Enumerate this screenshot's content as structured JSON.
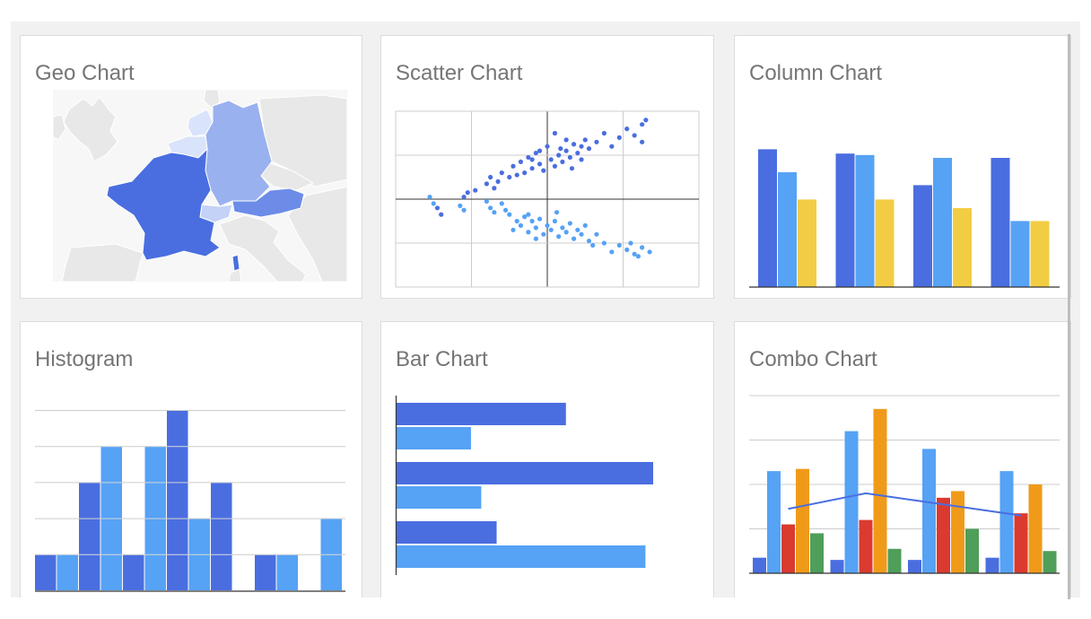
{
  "colors": {
    "blue_dark": "#4a6ee0",
    "blue_light": "#56a2f5",
    "yellow": "#f2cd44",
    "red": "#db3a2f",
    "orange": "#f09a1a",
    "green": "#4f9e59",
    "geo_land": "#e8e8e8",
    "geo_border": "#ffffff",
    "france": "#4a6ee0",
    "germany": "#9ab1ef",
    "austria": "#6c8ce8",
    "benelux": "#d9e3fa",
    "swiss": "#c3d2f6",
    "grid": "#cccccc",
    "axis": "#333333"
  },
  "cards": {
    "geo": {
      "title": "Geo Chart"
    },
    "scatter": {
      "title": "Scatter Chart"
    },
    "column": {
      "title": "Column Chart"
    },
    "histogram": {
      "title": "Histogram"
    },
    "bar": {
      "title": "Bar Chart"
    },
    "combo": {
      "title": "Combo Chart"
    }
  },
  "chart_data": [
    {
      "type": "map",
      "name": "geo",
      "regions": [
        "France",
        "Germany",
        "Austria",
        "Switzerland",
        "Belgium",
        "Netherlands"
      ],
      "region_fill": {
        "France": "france",
        "Germany": "germany",
        "Austria": "austria",
        "Switzerland": "swiss",
        "Belgium": "benelux",
        "Netherlands": "benelux"
      }
    },
    {
      "type": "scatter",
      "name": "scatter",
      "xlim": [
        -4,
        4
      ],
      "ylim": [
        -2,
        2
      ],
      "grid": true,
      "series": [
        {
          "points": [
            [
              -2.9,
              -0.2
            ],
            [
              -2.8,
              -0.35
            ],
            [
              -2.2,
              0.05
            ],
            [
              -2.1,
              0.15
            ],
            [
              -1.9,
              0.2
            ],
            [
              -1.6,
              0.35
            ],
            [
              -1.5,
              0.5
            ],
            [
              -1.3,
              0.4
            ],
            [
              -1.2,
              0.6
            ],
            [
              -1,
              0.5
            ],
            [
              -0.9,
              0.75
            ],
            [
              -0.8,
              0.55
            ],
            [
              -0.7,
              0.85
            ],
            [
              -0.6,
              0.6
            ],
            [
              -0.5,
              0.95
            ],
            [
              -0.4,
              0.7
            ],
            [
              -0.3,
              1.05
            ],
            [
              -0.2,
              0.8
            ],
            [
              -0.1,
              0.65
            ],
            [
              0,
              1.2
            ],
            [
              0.1,
              0.9
            ],
            [
              0.2,
              0.75
            ],
            [
              0.3,
              1.0
            ],
            [
              0.4,
              0.85
            ],
            [
              0.5,
              1.1
            ],
            [
              0.6,
              0.95
            ],
            [
              0.7,
              1.25
            ],
            [
              0.8,
              1.05
            ],
            [
              0.9,
              0.9
            ],
            [
              1.0,
              1.35
            ],
            [
              1.1,
              1.15
            ],
            [
              1.3,
              1.3
            ],
            [
              1.5,
              1.5
            ],
            [
              1.7,
              1.2
            ],
            [
              1.9,
              1.4
            ],
            [
              2.1,
              1.6
            ],
            [
              2.3,
              1.45
            ],
            [
              2.5,
              1.7
            ],
            [
              2.6,
              1.8
            ],
            [
              2.5,
              1.3
            ],
            [
              0.2,
              1.5
            ],
            [
              0.5,
              1.35
            ],
            [
              -0.2,
              1.1
            ],
            [
              0.35,
              1.15
            ],
            [
              -0.4,
              0.9
            ],
            [
              0.65,
              0.7
            ],
            [
              -1.4,
              0.25
            ],
            [
              0.9,
              1.2
            ]
          ]
        },
        {
          "points": [
            [
              -3.1,
              0.05
            ],
            [
              -3,
              -0.1
            ],
            [
              -2.3,
              -0.15
            ],
            [
              -2.2,
              -0.25
            ],
            [
              -1.6,
              -0.05
            ],
            [
              -1.5,
              -0.2
            ],
            [
              -1.4,
              -0.3
            ],
            [
              -1.2,
              -0.1
            ],
            [
              -1.1,
              -0.25
            ],
            [
              -1.0,
              -0.35
            ],
            [
              -0.8,
              -0.5
            ],
            [
              -0.7,
              -0.6
            ],
            [
              -0.6,
              -0.4
            ],
            [
              -0.5,
              -0.75
            ],
            [
              -0.4,
              -0.5
            ],
            [
              -0.3,
              -0.65
            ],
            [
              -0.2,
              -0.45
            ],
            [
              -0.1,
              -0.8
            ],
            [
              0,
              -0.6
            ],
            [
              0.1,
              -0.7
            ],
            [
              0.2,
              -0.5
            ],
            [
              0.3,
              -0.85
            ],
            [
              0.4,
              -0.65
            ],
            [
              0.5,
              -0.75
            ],
            [
              0.6,
              -0.55
            ],
            [
              0.7,
              -0.9
            ],
            [
              0.8,
              -0.7
            ],
            [
              0.9,
              -0.8
            ],
            [
              1.0,
              -0.6
            ],
            [
              1.1,
              -0.95
            ],
            [
              1.3,
              -0.8
            ],
            [
              1.5,
              -1.0
            ],
            [
              1.7,
              -1.2
            ],
            [
              1.9,
              -1.05
            ],
            [
              2.1,
              -1.15
            ],
            [
              2.3,
              -1.25
            ],
            [
              2.5,
              -1.1
            ],
            [
              2.7,
              -1.2
            ],
            [
              2.4,
              -1.3
            ],
            [
              1.2,
              -1.05
            ],
            [
              -0.3,
              -0.9
            ],
            [
              -0.5,
              -0.35
            ],
            [
              0.25,
              -0.3
            ],
            [
              -0.9,
              -0.7
            ],
            [
              2.2,
              -1.0
            ]
          ]
        }
      ]
    },
    {
      "type": "bar",
      "name": "column",
      "ylim": [
        0,
        100
      ],
      "series": [
        {
          "values": [
            96,
            93,
            71,
            90
          ]
        },
        {
          "values": [
            80,
            92,
            90,
            46
          ]
        },
        {
          "values": [
            61,
            61,
            55,
            46
          ]
        }
      ]
    },
    {
      "type": "bar",
      "name": "histogram",
      "ylim": [
        0,
        5
      ],
      "grid": true,
      "columns": [
        [
          1
        ],
        [
          1
        ],
        [
          1,
          1,
          1
        ],
        [
          1,
          1,
          1,
          1
        ],
        [
          1
        ],
        [
          1,
          1,
          1,
          1
        ],
        [
          1,
          1,
          1,
          1,
          1
        ],
        [
          1,
          1
        ],
        [
          1,
          1,
          1
        ],
        [],
        [
          1
        ],
        [
          1
        ],
        [],
        [
          1,
          1
        ]
      ],
      "column_colors": [
        [
          "blue_dark"
        ],
        [
          "blue_light"
        ],
        [
          "blue_dark",
          "blue_dark",
          "blue_dark"
        ],
        [
          "blue_light",
          "blue_light",
          "blue_light",
          "blue_light"
        ],
        [
          "blue_dark"
        ],
        [
          "blue_light",
          "blue_light",
          "blue_light",
          "blue_light"
        ],
        [
          "blue_dark",
          "blue_dark",
          "blue_dark",
          "blue_dark",
          "blue_dark"
        ],
        [
          "blue_light",
          "blue_light"
        ],
        [
          "blue_dark",
          "blue_dark",
          "blue_dark"
        ],
        [],
        [
          "blue_dark"
        ],
        [
          "blue_light"
        ],
        [],
        [
          "blue_light",
          "blue_light"
        ]
      ]
    },
    {
      "type": "bar",
      "name": "bar",
      "orientation": "horizontal",
      "xlim": [
        0,
        100
      ],
      "series": [
        {
          "values": [
            66,
            100,
            39
          ]
        },
        {
          "values": [
            29,
            33,
            97
          ]
        }
      ]
    },
    {
      "type": "bar",
      "name": "combo",
      "ylim": [
        0,
        4
      ],
      "grid": true,
      "series": [
        {
          "color": "blue_dark",
          "values": [
            0.35,
            0.3,
            0.3,
            0.35
          ]
        },
        {
          "color": "blue_light",
          "values": [
            2.3,
            3.2,
            2.8,
            2.3
          ]
        },
        {
          "color": "red",
          "values": [
            1.1,
            1.2,
            1.7,
            1.35
          ]
        },
        {
          "color": "orange",
          "values": [
            2.35,
            3.7,
            1.85,
            2.0
          ]
        },
        {
          "color": "green",
          "values": [
            0.9,
            0.55,
            1.0,
            0.5
          ]
        }
      ],
      "line": {
        "color": "blue_dark",
        "values": [
          1.45,
          1.8,
          1.55,
          1.3
        ]
      }
    }
  ]
}
